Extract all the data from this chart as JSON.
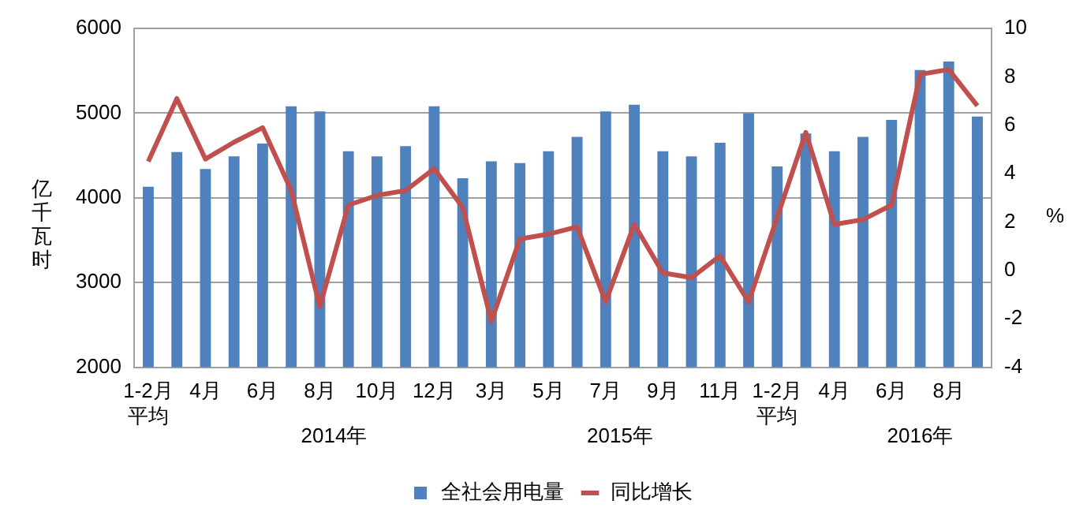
{
  "chart_data": {
    "type": "bar",
    "ylabel": "亿千瓦时",
    "y2label": "%",
    "categories": [
      "1-2月平均",
      null,
      "4月",
      null,
      "6月",
      null,
      "8月",
      null,
      "10月",
      null,
      "12月",
      null,
      "3月",
      null,
      "5月",
      null,
      "7月",
      null,
      "9月",
      null,
      "11月",
      null,
      "1-2月平均",
      null,
      "4月",
      null,
      "6月",
      null,
      "8月",
      null
    ],
    "series": [
      {
        "name": "全社会用电量",
        "color": "#4f81bd",
        "values": [
          4130,
          4540,
          4340,
          4490,
          4640,
          5080,
          5020,
          4550,
          4490,
          4610,
          5080,
          4230,
          4430,
          4410,
          4550,
          4720,
          5020,
          5100,
          4550,
          4490,
          4650,
          5000,
          4370,
          4760,
          4550,
          4720,
          4920,
          5510,
          5610,
          4960
        ]
      },
      {
        "name": "同比增长",
        "type": "line",
        "axis": "y2",
        "color": "#c0504d",
        "values": [
          4.5,
          7.1,
          4.6,
          5.3,
          5.9,
          3.3,
          -1.5,
          2.7,
          3.1,
          3.3,
          4.2,
          2.6,
          -2.1,
          1.3,
          1.5,
          1.8,
          -1.3,
          1.9,
          -0.1,
          -0.3,
          0.6,
          -1.3,
          2.2,
          5.7,
          1.9,
          2.1,
          2.7,
          8.1,
          8.3,
          6.8
        ]
      }
    ],
    "ylim": [
      2000,
      6000
    ],
    "yticks": [
      2000,
      3000,
      4000,
      5000,
      6000
    ],
    "y2lim": [
      -4,
      10
    ],
    "y2ticks": [
      -4,
      -2,
      0,
      2,
      4,
      6,
      8,
      10
    ],
    "grid": "y",
    "legend": "bottom",
    "marker": "none",
    "line_style": "solid",
    "annotations": [
      "2014年",
      "2015年",
      "2016年"
    ]
  }
}
